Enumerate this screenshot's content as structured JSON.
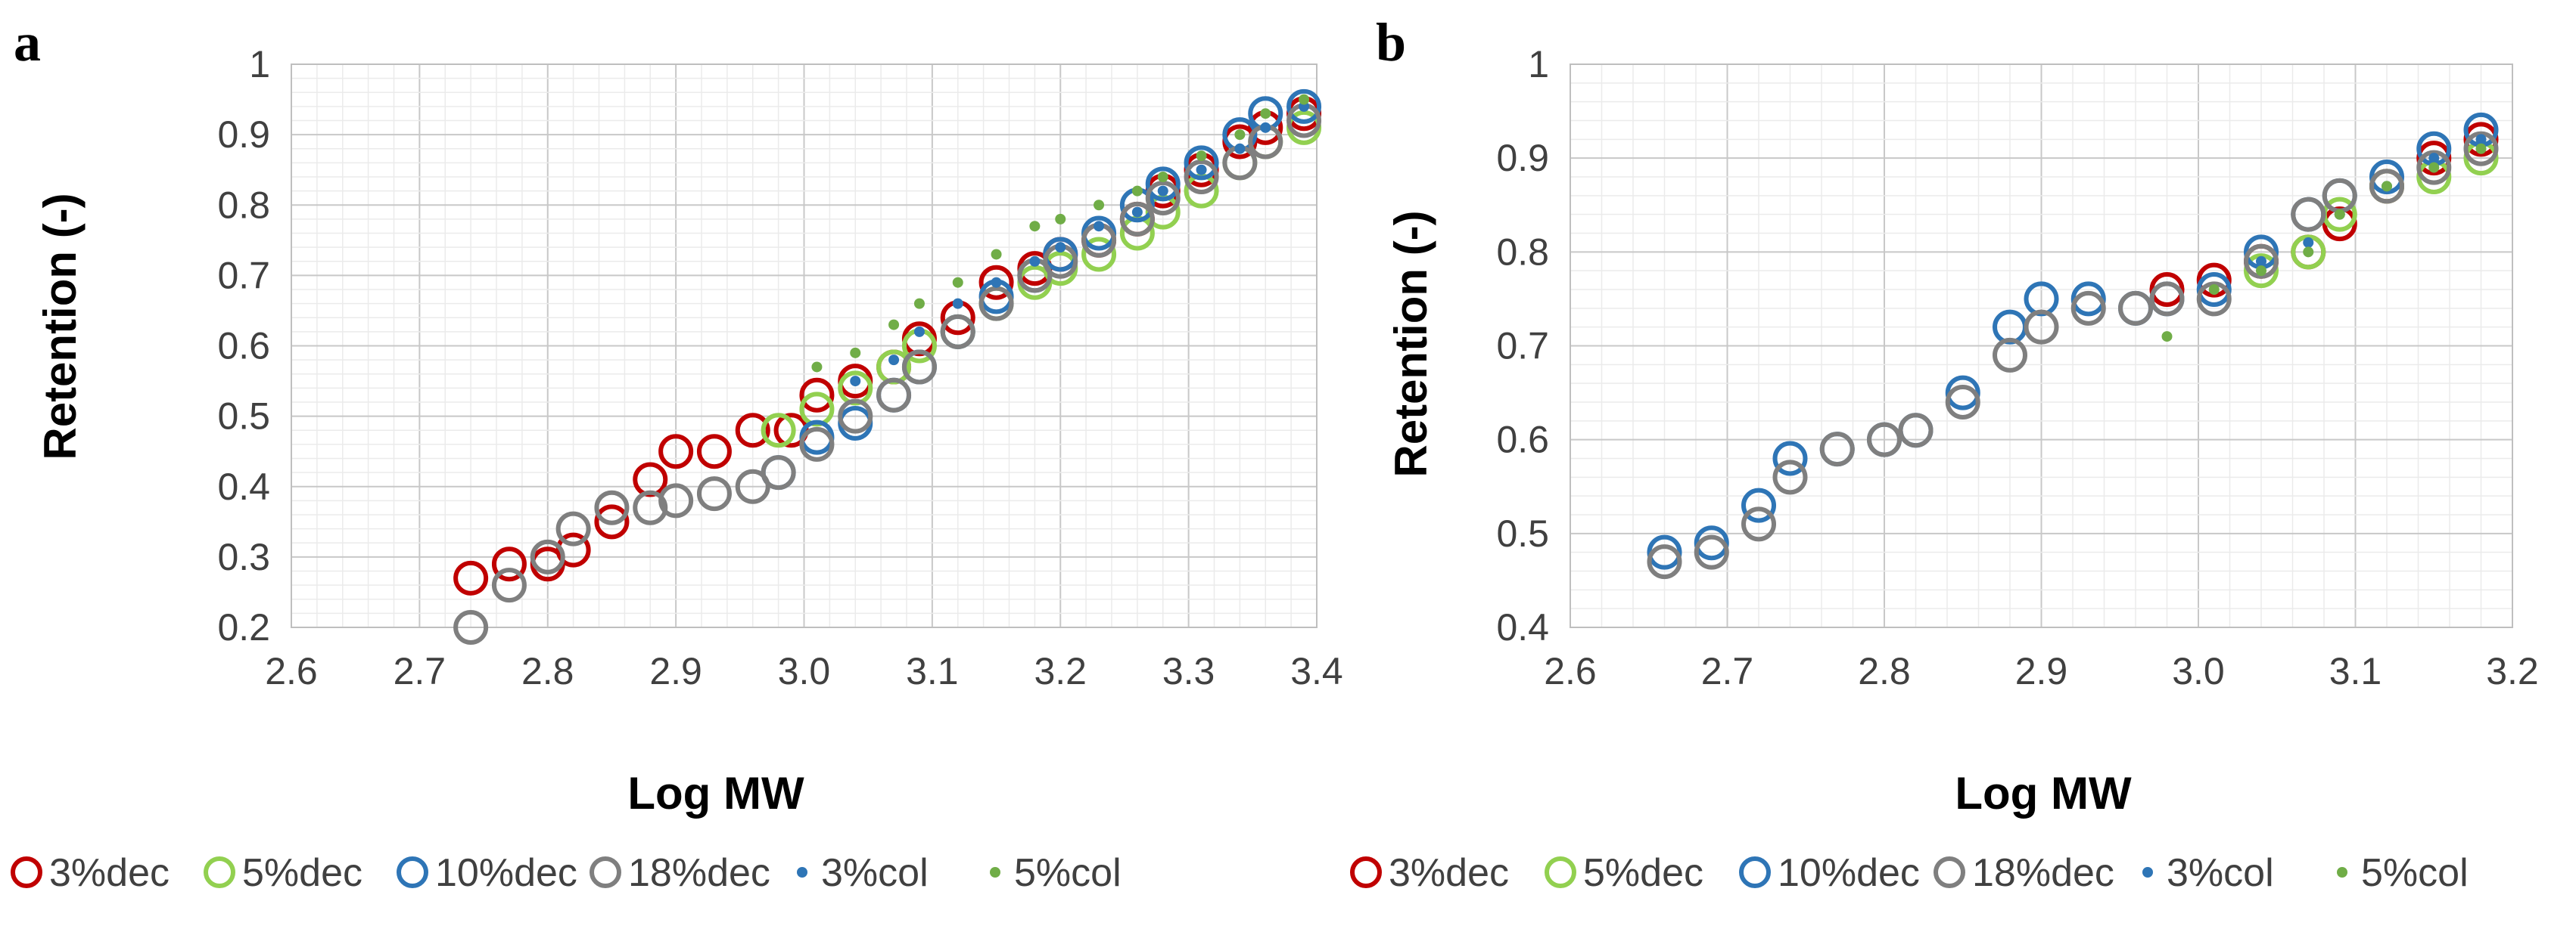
{
  "colors": {
    "3%dec": "#c00000",
    "5%dec": "#92d050",
    "10%dec": "#2e75b6",
    "18%dec": "#7f7f7f",
    "3%col": "#2e75b6",
    "5%col": "#70ad47"
  },
  "chart_data": [
    {
      "panel": "a",
      "type": "scatter",
      "xlabel": "Log MW",
      "ylabel": "Retention (-)",
      "xlim": [
        2.6,
        3.4
      ],
      "ylim": [
        0.2,
        1.0
      ],
      "xticks": [
        "2.6",
        "2.7",
        "2.8",
        "2.9",
        "3.0",
        "3.1",
        "3.2",
        "3.3",
        "3.4"
      ],
      "yticks": [
        "0.2",
        "0.3",
        "0.4",
        "0.5",
        "0.6",
        "0.7",
        "0.8",
        "0.9",
        "1"
      ],
      "grid": true,
      "legend_position": "bottom",
      "series": [
        {
          "name": "3%dec",
          "marker": "open-circle",
          "x": [
            2.74,
            2.77,
            2.8,
            2.82,
            2.85,
            2.88,
            2.9,
            2.93,
            2.96,
            2.99,
            3.01,
            3.04,
            3.07,
            3.09,
            3.12,
            3.15,
            3.18,
            3.2,
            3.23,
            3.26,
            3.28,
            3.31,
            3.34,
            3.36,
            3.39
          ],
          "y": [
            0.27,
            0.29,
            0.29,
            0.31,
            0.35,
            0.41,
            0.45,
            0.45,
            0.48,
            0.48,
            0.53,
            0.55,
            0.57,
            0.61,
            0.64,
            0.69,
            0.71,
            0.73,
            0.75,
            0.78,
            0.82,
            0.85,
            0.89,
            0.91,
            0.93
          ]
        },
        {
          "name": "5%dec",
          "marker": "open-circle",
          "x": [
            2.98,
            3.01,
            3.04,
            3.07,
            3.09,
            3.12,
            3.15,
            3.18,
            3.2,
            3.23,
            3.26,
            3.28,
            3.31,
            3.34,
            3.36,
            3.39
          ],
          "y": [
            0.48,
            0.51,
            0.54,
            0.57,
            0.6,
            0.62,
            0.66,
            0.69,
            0.71,
            0.73,
            0.76,
            0.79,
            0.82,
            0.86,
            0.89,
            0.91
          ]
        },
        {
          "name": "10%dec",
          "marker": "open-circle",
          "x": [
            2.98,
            3.01,
            3.04,
            3.07,
            3.09,
            3.12,
            3.15,
            3.18,
            3.2,
            3.23,
            3.26,
            3.28,
            3.31,
            3.34,
            3.36,
            3.39
          ],
          "y": [
            0.42,
            0.47,
            0.49,
            0.53,
            0.57,
            0.62,
            0.67,
            0.7,
            0.73,
            0.76,
            0.8,
            0.83,
            0.86,
            0.9,
            0.93,
            0.94
          ]
        },
        {
          "name": "18%dec",
          "marker": "open-circle",
          "x": [
            2.74,
            2.77,
            2.8,
            2.82,
            2.85,
            2.88,
            2.9,
            2.93,
            2.96,
            2.98,
            3.01,
            3.04,
            3.07,
            3.09,
            3.12,
            3.15,
            3.18,
            3.2,
            3.23,
            3.26,
            3.28,
            3.31,
            3.34,
            3.36,
            3.39
          ],
          "y": [
            0.2,
            0.26,
            0.3,
            0.34,
            0.37,
            0.37,
            0.38,
            0.39,
            0.4,
            0.42,
            0.46,
            0.5,
            0.53,
            0.57,
            0.62,
            0.66,
            0.7,
            0.72,
            0.75,
            0.78,
            0.81,
            0.84,
            0.86,
            0.89,
            0.92
          ]
        },
        {
          "name": "3%col",
          "marker": "dot",
          "x": [
            3.04,
            3.07,
            3.09,
            3.12,
            3.15,
            3.18,
            3.2,
            3.23,
            3.26,
            3.28,
            3.31,
            3.34,
            3.36,
            3.39
          ],
          "y": [
            0.55,
            0.58,
            0.62,
            0.66,
            0.69,
            0.72,
            0.74,
            0.77,
            0.79,
            0.82,
            0.85,
            0.88,
            0.91,
            0.94
          ]
        },
        {
          "name": "5%col",
          "marker": "dot",
          "x": [
            3.01,
            3.04,
            3.07,
            3.09,
            3.12,
            3.15,
            3.18,
            3.2,
            3.23,
            3.26,
            3.28,
            3.31,
            3.34,
            3.36,
            3.39
          ],
          "y": [
            0.57,
            0.59,
            0.63,
            0.66,
            0.69,
            0.73,
            0.77,
            0.78,
            0.8,
            0.82,
            0.84,
            0.87,
            0.9,
            0.93,
            0.95
          ]
        }
      ]
    },
    {
      "panel": "b",
      "type": "scatter",
      "xlabel": "Log MW",
      "ylabel": "Retention (-)",
      "xlim": [
        2.6,
        3.2
      ],
      "ylim": [
        0.4,
        1.0
      ],
      "xticks": [
        "2.6",
        "2.7",
        "2.8",
        "2.9",
        "3.0",
        "3.1",
        "3.2"
      ],
      "yticks": [
        "0.4",
        "0.5",
        "0.6",
        "0.7",
        "0.8",
        "0.9",
        "1"
      ],
      "grid": true,
      "legend_position": "bottom",
      "series": [
        {
          "name": "3%dec",
          "marker": "open-circle",
          "x": [
            2.98,
            3.01,
            3.04,
            3.07,
            3.09,
            3.12,
            3.15,
            3.18
          ],
          "y": [
            0.76,
            0.77,
            0.79,
            0.8,
            0.83,
            0.87,
            0.9,
            0.92
          ]
        },
        {
          "name": "5%dec",
          "marker": "open-circle",
          "x": [
            3.04,
            3.07,
            3.09,
            3.12,
            3.15,
            3.18
          ],
          "y": [
            0.78,
            0.8,
            0.84,
            0.87,
            0.88,
            0.9
          ]
        },
        {
          "name": "10%dec",
          "marker": "open-circle",
          "x": [
            2.66,
            2.69,
            2.72,
            2.74,
            2.77,
            2.8,
            2.82,
            2.85,
            2.88,
            2.9,
            2.93,
            2.96,
            2.98,
            3.01,
            3.04,
            3.07,
            3.09,
            3.12,
            3.15,
            3.18
          ],
          "y": [
            0.48,
            0.49,
            0.53,
            0.58,
            0.59,
            0.6,
            0.61,
            0.65,
            0.72,
            0.75,
            0.75,
            0.74,
            0.75,
            0.76,
            0.8,
            0.84,
            0.86,
            0.88,
            0.91,
            0.93
          ]
        },
        {
          "name": "18%dec",
          "marker": "open-circle",
          "x": [
            2.66,
            2.69,
            2.72,
            2.74,
            2.77,
            2.8,
            2.82,
            2.85,
            2.88,
            2.9,
            2.93,
            2.96,
            2.98,
            3.01,
            3.04,
            3.07,
            3.09,
            3.12,
            3.15,
            3.18
          ],
          "y": [
            0.47,
            0.48,
            0.51,
            0.56,
            0.59,
            0.6,
            0.61,
            0.64,
            0.69,
            0.72,
            0.74,
            0.74,
            0.75,
            0.75,
            0.79,
            0.84,
            0.86,
            0.87,
            0.89,
            0.91
          ]
        },
        {
          "name": "3%col",
          "marker": "dot",
          "x": [
            3.04,
            3.07,
            3.09,
            3.12,
            3.15,
            3.18
          ],
          "y": [
            0.79,
            0.81,
            0.84,
            0.87,
            0.9,
            0.92
          ]
        },
        {
          "name": "5%col",
          "marker": "dot",
          "x": [
            2.98,
            3.01,
            3.04,
            3.07,
            3.09,
            3.12,
            3.15,
            3.18
          ],
          "y": [
            0.71,
            0.76,
            0.78,
            0.8,
            0.84,
            0.87,
            0.89,
            0.91
          ]
        }
      ]
    }
  ]
}
